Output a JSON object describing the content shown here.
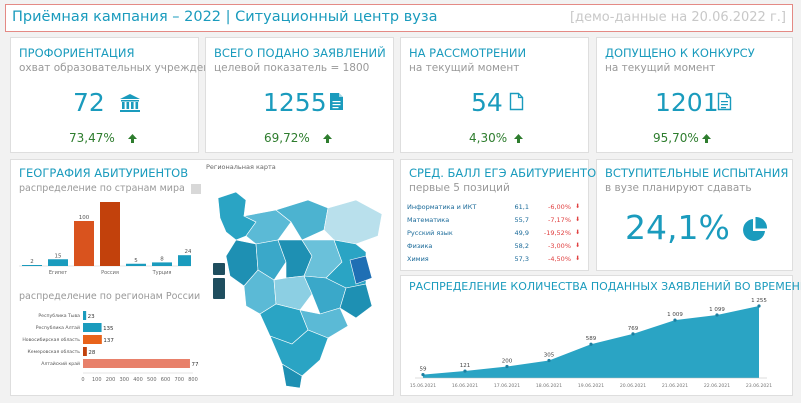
{
  "header": {
    "title": "Приёмная кампания – 2022 | Ситуационный центр вуза",
    "demo": "[демо-данные на 20.06.2022 г.]"
  },
  "colors": {
    "accent": "#1a9bbd",
    "orange": "#d9531e",
    "green": "#2e7d2e",
    "red": "#e04040",
    "salmon": "#e8806a"
  },
  "kpis": [
    {
      "title": "ПРОФОРИЕНТАЦИЯ",
      "subtitle": "охват образовательных учреждений",
      "value": "72",
      "icon": "bank-icon",
      "percent": "73,47%",
      "trend": "up-arrow-icon"
    },
    {
      "title": "ВСЕГО ПОДАНО ЗАЯВЛЕНИЙ",
      "subtitle": "целевой показатель = 1800",
      "value": "1255",
      "icon": "document-filled-icon",
      "percent": "69,72%",
      "trend": "up-arrow-icon"
    },
    {
      "title": "НА РАССМОТРЕНИИ",
      "subtitle": "на текущий момент",
      "value": "54",
      "icon": "document-outline-icon",
      "percent": "4,30%",
      "trend": "up-arrow-icon"
    },
    {
      "title": "ДОПУЩЕНО К КОНКУРСУ",
      "subtitle": "на текущий момент",
      "value": "1201",
      "icon": "document-lines-icon",
      "percent": "95,70%",
      "trend": "up-arrow-icon"
    }
  ],
  "geo": {
    "title": "ГЕОГРАФИЯ АБИТУРИЕНТОВ",
    "countries_subtitle": "распределение по странам мира",
    "regions_subtitle": "распределение по регионам России",
    "map_label": "Региональная карта"
  },
  "score": {
    "title": "СРЕД. БАЛЛ ЕГЭ АБИТУРИЕНТОВ",
    "subtitle": "первые 5 позиций",
    "rows": [
      {
        "subject": "Информатика и ИКТ",
        "score": "61,1",
        "change": "-6,00%"
      },
      {
        "subject": "Математика",
        "score": "55,7",
        "change": "-7,17%"
      },
      {
        "subject": "Русский язык",
        "score": "49,9",
        "change": "-19,52%"
      },
      {
        "subject": "Физика",
        "score": "58,2",
        "change": "-3,00%"
      },
      {
        "subject": "Химия",
        "score": "57,3",
        "change": "-4,50%"
      }
    ]
  },
  "exams": {
    "title": "ВСТУПИТЕЛЬНЫЕ ИСПЫТАНИЯ",
    "subtitle": "в вузе планируют сдавать",
    "value": "24,1%",
    "icon": "pie-chart-icon"
  },
  "timeline": {
    "title": "РАСПРЕДЕЛЕНИЕ КОЛИЧЕСТВА ПОДАННЫХ ЗАЯВЛЕНИЙ ВО ВРЕМЕНИ"
  },
  "chart_data": [
    {
      "type": "bar",
      "id": "countries",
      "values": [
        2,
        15,
        100,
        1901,
        5,
        8,
        24
      ],
      "value_labels": [
        "2",
        "15",
        "100",
        "1 901",
        "5",
        "8",
        "24"
      ],
      "categories": [
        "",
        "Египет",
        "",
        "Россия",
        "",
        "Турция",
        ""
      ],
      "colors": [
        "#1a9bbd",
        "#1a9bbd",
        "#d9531e",
        "#c2410c",
        "#1a9bbd",
        "#1a9bbd",
        "#1a9bbd"
      ]
    },
    {
      "type": "bar",
      "id": "regions",
      "orientation": "horizontal",
      "categories": [
        "Республика Тыва",
        "Республика Алтай",
        "Новосибирская область",
        "Кемеровская область",
        "Алтайский край"
      ],
      "values": [
        23,
        135,
        137,
        28,
        778
      ],
      "colors": [
        "#1a9bbd",
        "#1a9bbd",
        "#e8631a",
        "#c2410c",
        "#e8806a"
      ],
      "x_ticks": [
        "0",
        "100",
        "200",
        "300",
        "400",
        "500",
        "600",
        "700",
        "800"
      ],
      "xlim": [
        0,
        800
      ]
    },
    {
      "type": "area",
      "id": "timeline",
      "x": [
        "15.06.2021",
        "16.06.2021",
        "17.06.2021",
        "18.06.2021",
        "19.06.2021",
        "20.06.2021",
        "21.06.2021",
        "22.06.2021",
        "23.06.2021"
      ],
      "values": [
        59,
        121,
        200,
        305,
        589,
        769,
        1009,
        1099,
        1255
      ],
      "value_labels": [
        "59",
        "121",
        "200",
        "305",
        "589",
        "769",
        "1 009",
        "1 099",
        "1 255"
      ],
      "color": "#2aa4c4"
    }
  ]
}
